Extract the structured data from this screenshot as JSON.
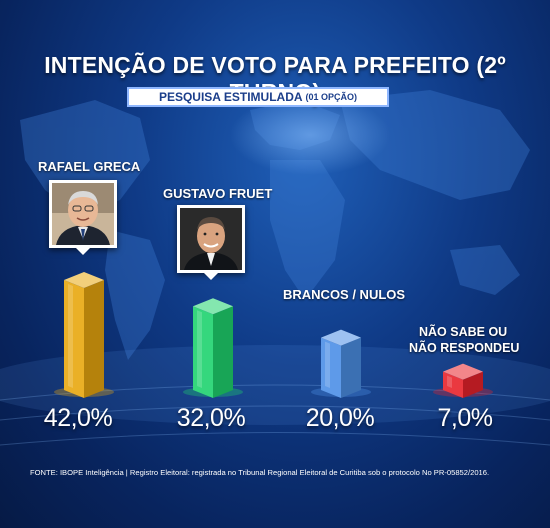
{
  "chart_data": {
    "type": "bar",
    "title": "INTENÇÃO DE VOTO PARA PREFEITO (2º TURNO)",
    "subtitle": "PESQUISA ESTIMULADA",
    "subtitle_note": "(01 OPÇÃO)",
    "categories": [
      "RAFAEL GRECA",
      "GUSTAVO FRUET",
      "BRANCOS / NULOS",
      "NÃO SABE OU NÃO RESPONDEU"
    ],
    "category_lines": [
      [
        "RAFAEL GRECA"
      ],
      [
        "GUSTAVO FRUET"
      ],
      [
        "BRANCOS / NULOS"
      ],
      [
        "NÃO SABE OU",
        "NÃO RESPONDEU"
      ]
    ],
    "values": [
      42.0,
      32.0,
      20.0,
      7.0
    ],
    "value_labels": [
      "42,0%",
      "32,0%",
      "20,0%",
      "7,0%"
    ],
    "colors": [
      "#e8a70f",
      "#1fd36e",
      "#4c8fe6",
      "#e8232b"
    ],
    "ylim": [
      0,
      42
    ],
    "grid": false,
    "legend": "none"
  },
  "source_text": "FONTE: IBOPE Inteligência | Registro Eleitoral: registrada no Tribunal Regional Eleitoral de Curitiba sob o protocolo No PR-05852/2016."
}
